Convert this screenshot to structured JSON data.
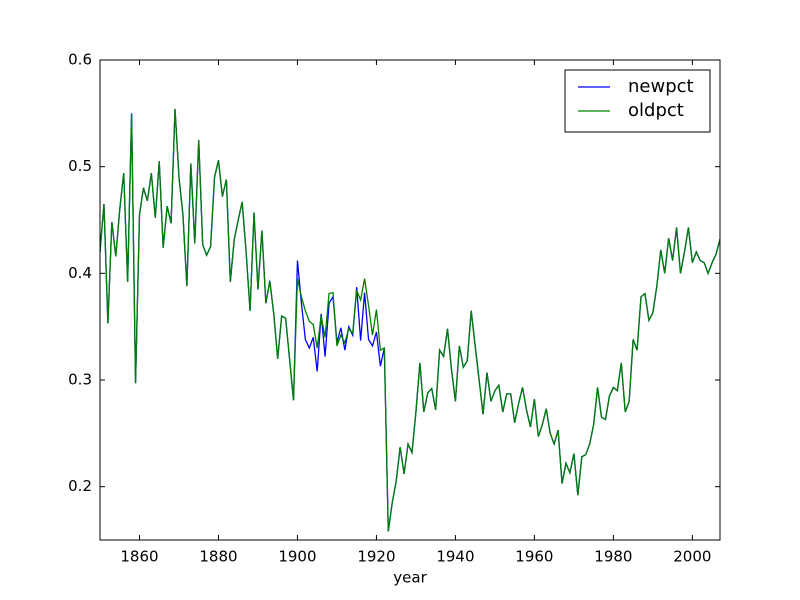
{
  "chart_data": {
    "type": "line",
    "xlabel": "year",
    "x": [
      1850,
      1851,
      1852,
      1853,
      1854,
      1855,
      1856,
      1857,
      1858,
      1859,
      1860,
      1861,
      1862,
      1863,
      1864,
      1865,
      1866,
      1867,
      1868,
      1869,
      1870,
      1871,
      1872,
      1873,
      1874,
      1875,
      1876,
      1877,
      1878,
      1879,
      1880,
      1881,
      1882,
      1883,
      1884,
      1885,
      1886,
      1887,
      1888,
      1889,
      1890,
      1891,
      1892,
      1893,
      1894,
      1895,
      1896,
      1897,
      1898,
      1899,
      1900,
      1901,
      1902,
      1903,
      1904,
      1905,
      1906,
      1907,
      1908,
      1909,
      1910,
      1911,
      1912,
      1913,
      1914,
      1915,
      1916,
      1917,
      1918,
      1919,
      1920,
      1921,
      1922,
      1923,
      1924,
      1925,
      1926,
      1927,
      1928,
      1929,
      1930,
      1931,
      1932,
      1933,
      1934,
      1935,
      1936,
      1937,
      1938,
      1939,
      1940,
      1941,
      1942,
      1943,
      1944,
      1945,
      1946,
      1947,
      1948,
      1949,
      1950,
      1951,
      1952,
      1953,
      1954,
      1955,
      1956,
      1957,
      1958,
      1959,
      1960,
      1961,
      1962,
      1963,
      1964,
      1965,
      1966,
      1967,
      1968,
      1969,
      1970,
      1971,
      1972,
      1973,
      1974,
      1975,
      1976,
      1977,
      1978,
      1979,
      1980,
      1981,
      1982,
      1983,
      1984,
      1985,
      1986,
      1987,
      1988,
      1989,
      1990,
      1991,
      1992,
      1993,
      1994,
      1995,
      1996,
      1997,
      1998,
      1999,
      2000,
      2001,
      2002,
      2003,
      2004,
      2005,
      2006,
      2007
    ],
    "series": [
      {
        "name": "newpct",
        "color": "#0000ff",
        "values": [
          0.42,
          0.465,
          0.353,
          0.448,
          0.416,
          0.46,
          0.494,
          0.392,
          0.55,
          0.297,
          0.455,
          0.48,
          0.468,
          0.494,
          0.452,
          0.505,
          0.424,
          0.463,
          0.447,
          0.554,
          0.49,
          0.455,
          0.388,
          0.503,
          0.428,
          0.525,
          0.427,
          0.417,
          0.425,
          0.49,
          0.506,
          0.472,
          0.488,
          0.392,
          0.432,
          0.45,
          0.467,
          0.42,
          0.365,
          0.457,
          0.385,
          0.44,
          0.372,
          0.393,
          0.362,
          0.32,
          0.36,
          0.358,
          0.32,
          0.281,
          0.412,
          0.372,
          0.338,
          0.33,
          0.34,
          0.308,
          0.362,
          0.322,
          0.372,
          0.378,
          0.335,
          0.349,
          0.328,
          0.35,
          0.342,
          0.387,
          0.337,
          0.382,
          0.338,
          0.332,
          0.345,
          0.313,
          0.33,
          0.158,
          0.185,
          0.205,
          0.237,
          0.212,
          0.24,
          0.232,
          0.27,
          0.316,
          0.27,
          0.288,
          0.292,
          0.272,
          0.328,
          0.322,
          0.348,
          0.31,
          0.28,
          0.332,
          0.312,
          0.318,
          0.365,
          0.332,
          0.3,
          0.268,
          0.307,
          0.28,
          0.29,
          0.295,
          0.27,
          0.287,
          0.287,
          0.26,
          0.278,
          0.293,
          0.272,
          0.256,
          0.282,
          0.247,
          0.258,
          0.273,
          0.25,
          0.24,
          0.253,
          0.203,
          0.222,
          0.213,
          0.231,
          0.192,
          0.228,
          0.23,
          0.24,
          0.258,
          0.293,
          0.265,
          0.263,
          0.285,
          0.293,
          0.29,
          0.316,
          0.27,
          0.28,
          0.338,
          0.328,
          0.378,
          0.381,
          0.356,
          0.363,
          0.388,
          0.422,
          0.4,
          0.433,
          0.412,
          0.443,
          0.4,
          0.42,
          0.443,
          0.41,
          0.42,
          0.412,
          0.41,
          0.4,
          0.41,
          0.418,
          0.432
        ]
      },
      {
        "name": "oldpct",
        "color": "#008000",
        "values": [
          0.42,
          0.465,
          0.353,
          0.448,
          0.416,
          0.46,
          0.494,
          0.392,
          0.55,
          0.297,
          0.455,
          0.48,
          0.468,
          0.494,
          0.452,
          0.505,
          0.424,
          0.463,
          0.447,
          0.554,
          0.49,
          0.455,
          0.388,
          0.503,
          0.428,
          0.525,
          0.427,
          0.417,
          0.425,
          0.49,
          0.506,
          0.472,
          0.488,
          0.392,
          0.432,
          0.45,
          0.467,
          0.42,
          0.365,
          0.457,
          0.385,
          0.44,
          0.372,
          0.393,
          0.362,
          0.32,
          0.36,
          0.358,
          0.32,
          0.281,
          0.395,
          0.378,
          0.365,
          0.355,
          0.352,
          0.33,
          0.36,
          0.34,
          0.381,
          0.382,
          0.332,
          0.342,
          0.335,
          0.348,
          0.344,
          0.384,
          0.375,
          0.395,
          0.37,
          0.342,
          0.366,
          0.328,
          0.33,
          0.158,
          0.185,
          0.205,
          0.237,
          0.212,
          0.24,
          0.232,
          0.27,
          0.316,
          0.27,
          0.288,
          0.292,
          0.272,
          0.328,
          0.322,
          0.348,
          0.31,
          0.28,
          0.332,
          0.312,
          0.318,
          0.365,
          0.332,
          0.3,
          0.268,
          0.307,
          0.28,
          0.29,
          0.295,
          0.27,
          0.287,
          0.287,
          0.26,
          0.278,
          0.293,
          0.272,
          0.256,
          0.282,
          0.247,
          0.258,
          0.273,
          0.25,
          0.24,
          0.253,
          0.203,
          0.222,
          0.213,
          0.231,
          0.192,
          0.228,
          0.23,
          0.24,
          0.258,
          0.293,
          0.265,
          0.263,
          0.285,
          0.293,
          0.29,
          0.316,
          0.27,
          0.28,
          0.338,
          0.328,
          0.378,
          0.381,
          0.356,
          0.363,
          0.388,
          0.422,
          0.4,
          0.433,
          0.412,
          0.443,
          0.4,
          0.42,
          0.443,
          0.41,
          0.42,
          0.412,
          0.41,
          0.4,
          0.41,
          0.418,
          0.432
        ]
      }
    ],
    "xlim": [
      1850,
      2007
    ],
    "xticks": [
      1860,
      1880,
      1900,
      1920,
      1940,
      1960,
      1980,
      2000
    ],
    "ylim": [
      0.15,
      0.6
    ],
    "yticks": [
      0.2,
      0.3,
      0.4,
      0.5,
      0.6
    ],
    "legend": "upper right"
  }
}
